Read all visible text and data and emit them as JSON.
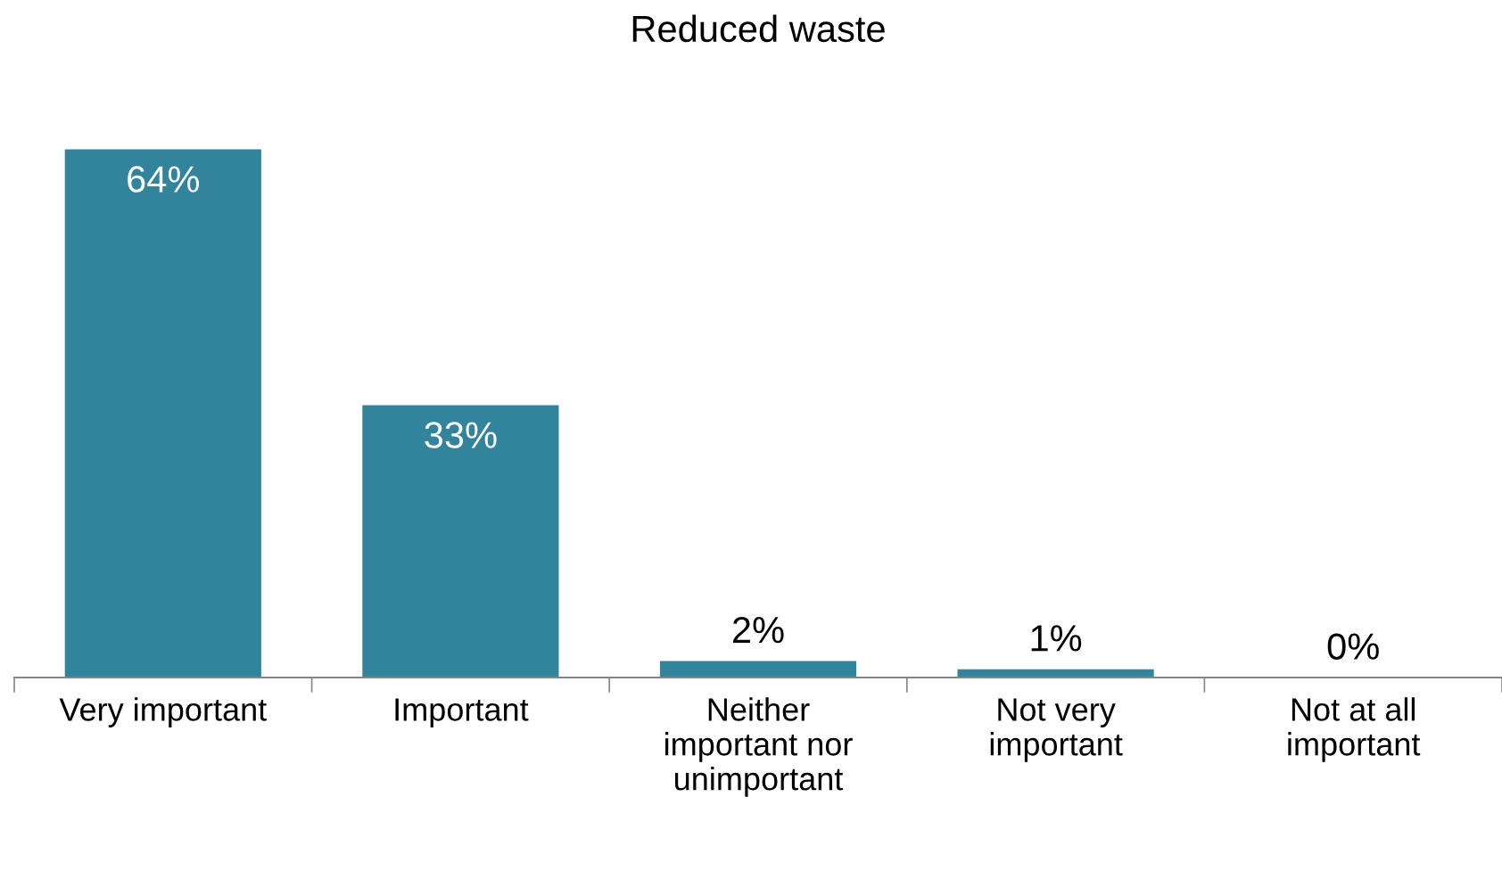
{
  "chart_data": {
    "type": "bar",
    "title": "Reduced waste",
    "categories": [
      "Very important",
      "Important",
      "Neither\nimportant nor\nunimportant",
      "Not very\nimportant",
      "Not at all\nimportant"
    ],
    "values": [
      64,
      33,
      2,
      1,
      0
    ],
    "color": "#31849b",
    "value_labels": [
      "64%",
      "33%",
      "2%",
      "1%",
      "0%"
    ],
    "grid": false,
    "legend": false
  }
}
